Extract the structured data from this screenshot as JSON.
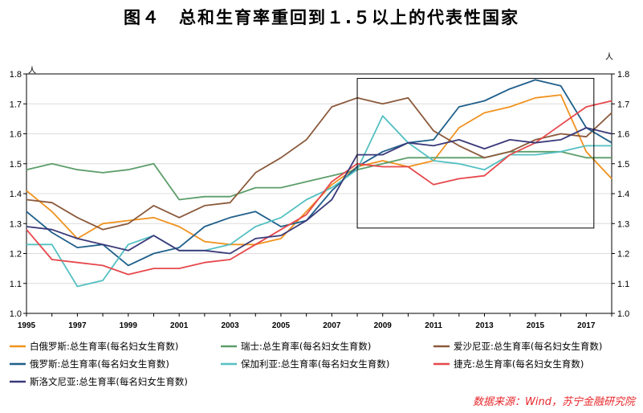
{
  "title": "图４　总和生育率重回到１.５以上的代表性国家",
  "source": "数据来源：Wind，苏宁金融研究院",
  "chart_data": {
    "type": "line",
    "y_unit_left": "人",
    "y_unit_right": "人",
    "ylim": [
      1.0,
      1.8
    ],
    "yticks": [
      "1.0",
      "1.1",
      "1.2",
      "1.3",
      "1.4",
      "1.5",
      "1.6",
      "1.7",
      "1.8"
    ],
    "xlim": [
      1995,
      2018
    ],
    "xticks": [
      "1995",
      "1997",
      "1999",
      "2001",
      "2003",
      "2005",
      "2007",
      "2009",
      "2011",
      "2013",
      "2015",
      "2017"
    ],
    "highlight_box": {
      "x": [
        2008,
        2017.3
      ],
      "y": [
        1.285,
        1.785
      ]
    },
    "x": [
      1995,
      1996,
      1997,
      1998,
      1999,
      2000,
      2001,
      2002,
      2003,
      2004,
      2005,
      2006,
      2007,
      2008,
      2009,
      2010,
      2011,
      2012,
      2013,
      2014,
      2015,
      2016,
      2017,
      2018
    ],
    "series": [
      {
        "name": "白俄罗斯:总生育率(每名妇女生育数)",
        "color": "#f0921e",
        "values": [
          1.41,
          1.34,
          1.25,
          1.3,
          1.31,
          1.32,
          1.29,
          1.24,
          1.23,
          1.23,
          1.25,
          1.34,
          1.43,
          1.49,
          1.51,
          1.49,
          1.51,
          1.62,
          1.67,
          1.69,
          1.72,
          1.73,
          1.54,
          1.45
        ]
      },
      {
        "name": "瑞士:总生育率(每名妇女生育数)",
        "color": "#5c9e6a",
        "values": [
          1.48,
          1.5,
          1.48,
          1.47,
          1.48,
          1.5,
          1.38,
          1.39,
          1.39,
          1.42,
          1.42,
          1.44,
          1.46,
          1.48,
          1.5,
          1.52,
          1.52,
          1.52,
          1.52,
          1.54,
          1.54,
          1.54,
          1.52,
          1.52
        ]
      },
      {
        "name": "爱沙尼亚:总生育率(每名妇女生育数)",
        "color": "#8b5a3c",
        "values": [
          1.38,
          1.37,
          1.32,
          1.28,
          1.3,
          1.36,
          1.32,
          1.36,
          1.37,
          1.47,
          1.52,
          1.58,
          1.69,
          1.72,
          1.7,
          1.72,
          1.61,
          1.56,
          1.52,
          1.54,
          1.58,
          1.6,
          1.59,
          1.67
        ]
      },
      {
        "name": "俄罗斯:总生育率(每名妇女生育数)",
        "color": "#1f5f8b",
        "values": [
          1.34,
          1.27,
          1.22,
          1.23,
          1.16,
          1.2,
          1.22,
          1.29,
          1.32,
          1.34,
          1.29,
          1.31,
          1.41,
          1.49,
          1.54,
          1.57,
          1.58,
          1.69,
          1.71,
          1.75,
          1.78,
          1.76,
          1.62,
          1.57
        ]
      },
      {
        "name": "保加利亚:总生育率(每名妇女生育数)",
        "color": "#54c0c2",
        "values": [
          1.23,
          1.23,
          1.09,
          1.11,
          1.23,
          1.26,
          1.21,
          1.21,
          1.23,
          1.29,
          1.32,
          1.38,
          1.42,
          1.48,
          1.66,
          1.57,
          1.51,
          1.5,
          1.48,
          1.53,
          1.53,
          1.54,
          1.56,
          1.56
        ]
      },
      {
        "name": "捷克:总生育率(每名妇女生育数)",
        "color": "#e6484c",
        "values": [
          1.28,
          1.18,
          1.17,
          1.16,
          1.13,
          1.15,
          1.15,
          1.17,
          1.18,
          1.23,
          1.28,
          1.33,
          1.44,
          1.5,
          1.49,
          1.49,
          1.43,
          1.45,
          1.46,
          1.53,
          1.57,
          1.63,
          1.69,
          1.71
        ]
      },
      {
        "name": "斯洛文尼亚:总生育率(每名妇女生育数)",
        "color": "#3a3a7a",
        "values": [
          1.29,
          1.28,
          1.25,
          1.23,
          1.21,
          1.26,
          1.21,
          1.21,
          1.2,
          1.25,
          1.26,
          1.31,
          1.38,
          1.53,
          1.53,
          1.57,
          1.56,
          1.58,
          1.55,
          1.58,
          1.57,
          1.58,
          1.62,
          1.6
        ]
      }
    ]
  }
}
